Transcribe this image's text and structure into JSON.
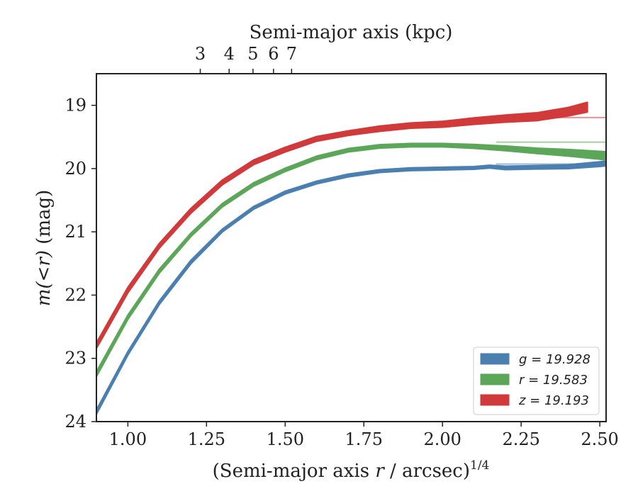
{
  "chart_data": {
    "type": "area",
    "title": "",
    "xlabel": "(Semi-major axis r / arcsec)",
    "xlabel_var": "r",
    "xlabel_pre": "(Semi-major axis ",
    "xlabel_post": " / arcsec)",
    "xlabel_exp": "1/4",
    "ylabel_pre": "m(<r)",
    "ylabel_post": " (mag)",
    "top_xlabel": "Semi-major axis (kpc)",
    "xlim": [
      0.9,
      2.52
    ],
    "ylim": [
      24,
      18.5
    ],
    "y_inverted": true,
    "x_ticks": [
      1.0,
      1.25,
      1.5,
      1.75,
      2.0,
      2.25,
      2.5
    ],
    "x_tick_labels": [
      "1.00",
      "1.25",
      "1.50",
      "1.75",
      "2.00",
      "2.25",
      "2.50"
    ],
    "y_ticks": [
      19,
      20,
      21,
      22,
      23,
      24
    ],
    "y_tick_labels": [
      "19",
      "20",
      "21",
      "22",
      "23",
      "24"
    ],
    "top_x_ticks": [
      3,
      4,
      5,
      6,
      7
    ],
    "top_x_tick_labels": [
      "3",
      "4",
      "5",
      "6",
      "7"
    ],
    "kpc_per_arcsec": 1.31,
    "grid": false,
    "legend_position": "lower-right",
    "series": [
      {
        "name": "g = 19.928",
        "band": "g",
        "total_mag": "19.928",
        "color": "#4a7fb0",
        "asymptote": 19.928,
        "x": [
          0.9,
          1.0,
          1.1,
          1.2,
          1.3,
          1.4,
          1.5,
          1.6,
          1.7,
          1.8,
          1.9,
          2.0,
          2.1,
          2.15,
          2.2,
          2.3,
          2.4,
          2.5,
          2.52
        ],
        "y": [
          23.85,
          22.92,
          22.12,
          21.48,
          20.98,
          20.62,
          20.38,
          20.22,
          20.11,
          20.04,
          20.01,
          20.0,
          19.99,
          19.97,
          19.99,
          19.98,
          19.97,
          19.93,
          19.92
        ],
        "band_width": [
          0.06,
          0.05,
          0.05,
          0.05,
          0.04,
          0.04,
          0.04,
          0.04,
          0.04,
          0.04,
          0.04,
          0.04,
          0.04,
          0.04,
          0.05,
          0.05,
          0.06,
          0.07,
          0.07
        ]
      },
      {
        "name": "r = 19.583",
        "band": "r",
        "total_mag": "19.583",
        "color": "#5ca65a",
        "asymptote": 19.583,
        "x": [
          0.9,
          1.0,
          1.1,
          1.2,
          1.3,
          1.4,
          1.5,
          1.6,
          1.7,
          1.8,
          1.9,
          2.0,
          2.1,
          2.2,
          2.3,
          2.4,
          2.5,
          2.52
        ],
        "y": [
          23.25,
          22.35,
          21.62,
          21.05,
          20.58,
          20.25,
          20.02,
          19.83,
          19.71,
          19.65,
          19.63,
          19.63,
          19.65,
          19.68,
          19.72,
          19.75,
          19.79,
          19.8
        ],
        "band_width": [
          0.07,
          0.06,
          0.06,
          0.05,
          0.05,
          0.05,
          0.05,
          0.05,
          0.05,
          0.05,
          0.05,
          0.05,
          0.06,
          0.07,
          0.08,
          0.1,
          0.12,
          0.13
        ]
      },
      {
        "name": "z = 19.193",
        "band": "z",
        "total_mag": "19.193",
        "color": "#d03a3a",
        "asymptote": 19.193,
        "x": [
          0.9,
          1.0,
          1.1,
          1.2,
          1.3,
          1.4,
          1.5,
          1.6,
          1.7,
          1.8,
          1.9,
          2.0,
          2.1,
          2.2,
          2.3,
          2.4,
          2.46
        ],
        "y": [
          22.8,
          21.92,
          21.22,
          20.67,
          20.22,
          19.9,
          19.7,
          19.53,
          19.44,
          19.37,
          19.32,
          19.3,
          19.25,
          19.21,
          19.18,
          19.1,
          19.03
        ],
        "band_width": [
          0.08,
          0.08,
          0.07,
          0.07,
          0.07,
          0.07,
          0.07,
          0.07,
          0.07,
          0.08,
          0.08,
          0.09,
          0.1,
          0.11,
          0.12,
          0.13,
          0.15
        ]
      }
    ]
  }
}
